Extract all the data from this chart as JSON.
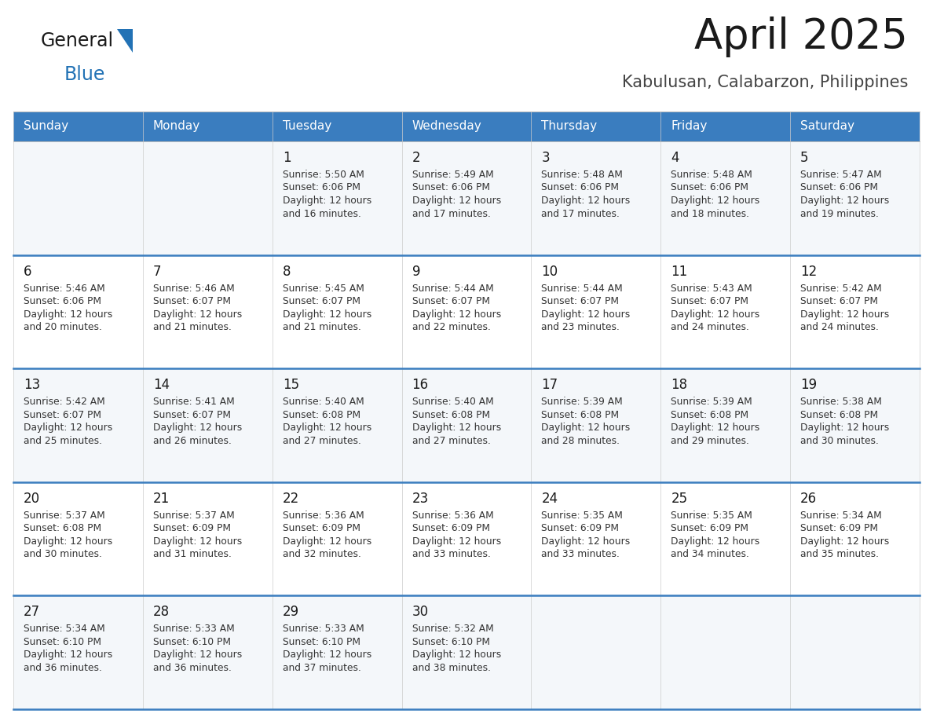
{
  "title": "April 2025",
  "subtitle": "Kabulusan, Calabarzon, Philippines",
  "header_bg_color": "#3a7dbf",
  "header_text_color": "#ffffff",
  "cell_bg_even": "#f4f7fa",
  "cell_bg_odd": "#ffffff",
  "title_color": "#1a1a1a",
  "subtitle_color": "#444444",
  "day_number_color": "#1a1a1a",
  "cell_text_color": "#333333",
  "divider_color": "#3a7dbf",
  "logo_general_color": "#1a1a1a",
  "logo_blue_color": "#2272b5",
  "logo_triangle_color": "#2272b5",
  "days_of_week": [
    "Sunday",
    "Monday",
    "Tuesday",
    "Wednesday",
    "Thursday",
    "Friday",
    "Saturday"
  ],
  "calendar": [
    [
      {
        "day": null,
        "sunrise": null,
        "sunset": null,
        "daylight": null
      },
      {
        "day": null,
        "sunrise": null,
        "sunset": null,
        "daylight": null
      },
      {
        "day": 1,
        "sunrise": "5:50 AM",
        "sunset": "6:06 PM",
        "daylight": "12 hours and 16 minutes."
      },
      {
        "day": 2,
        "sunrise": "5:49 AM",
        "sunset": "6:06 PM",
        "daylight": "12 hours and 17 minutes."
      },
      {
        "day": 3,
        "sunrise": "5:48 AM",
        "sunset": "6:06 PM",
        "daylight": "12 hours and 17 minutes."
      },
      {
        "day": 4,
        "sunrise": "5:48 AM",
        "sunset": "6:06 PM",
        "daylight": "12 hours and 18 minutes."
      },
      {
        "day": 5,
        "sunrise": "5:47 AM",
        "sunset": "6:06 PM",
        "daylight": "12 hours and 19 minutes."
      }
    ],
    [
      {
        "day": 6,
        "sunrise": "5:46 AM",
        "sunset": "6:06 PM",
        "daylight": "12 hours and 20 minutes."
      },
      {
        "day": 7,
        "sunrise": "5:46 AM",
        "sunset": "6:07 PM",
        "daylight": "12 hours and 21 minutes."
      },
      {
        "day": 8,
        "sunrise": "5:45 AM",
        "sunset": "6:07 PM",
        "daylight": "12 hours and 21 minutes."
      },
      {
        "day": 9,
        "sunrise": "5:44 AM",
        "sunset": "6:07 PM",
        "daylight": "12 hours and 22 minutes."
      },
      {
        "day": 10,
        "sunrise": "5:44 AM",
        "sunset": "6:07 PM",
        "daylight": "12 hours and 23 minutes."
      },
      {
        "day": 11,
        "sunrise": "5:43 AM",
        "sunset": "6:07 PM",
        "daylight": "12 hours and 24 minutes."
      },
      {
        "day": 12,
        "sunrise": "5:42 AM",
        "sunset": "6:07 PM",
        "daylight": "12 hours and 24 minutes."
      }
    ],
    [
      {
        "day": 13,
        "sunrise": "5:42 AM",
        "sunset": "6:07 PM",
        "daylight": "12 hours and 25 minutes."
      },
      {
        "day": 14,
        "sunrise": "5:41 AM",
        "sunset": "6:07 PM",
        "daylight": "12 hours and 26 minutes."
      },
      {
        "day": 15,
        "sunrise": "5:40 AM",
        "sunset": "6:08 PM",
        "daylight": "12 hours and 27 minutes."
      },
      {
        "day": 16,
        "sunrise": "5:40 AM",
        "sunset": "6:08 PM",
        "daylight": "12 hours and 27 minutes."
      },
      {
        "day": 17,
        "sunrise": "5:39 AM",
        "sunset": "6:08 PM",
        "daylight": "12 hours and 28 minutes."
      },
      {
        "day": 18,
        "sunrise": "5:39 AM",
        "sunset": "6:08 PM",
        "daylight": "12 hours and 29 minutes."
      },
      {
        "day": 19,
        "sunrise": "5:38 AM",
        "sunset": "6:08 PM",
        "daylight": "12 hours and 30 minutes."
      }
    ],
    [
      {
        "day": 20,
        "sunrise": "5:37 AM",
        "sunset": "6:08 PM",
        "daylight": "12 hours and 30 minutes."
      },
      {
        "day": 21,
        "sunrise": "5:37 AM",
        "sunset": "6:09 PM",
        "daylight": "12 hours and 31 minutes."
      },
      {
        "day": 22,
        "sunrise": "5:36 AM",
        "sunset": "6:09 PM",
        "daylight": "12 hours and 32 minutes."
      },
      {
        "day": 23,
        "sunrise": "5:36 AM",
        "sunset": "6:09 PM",
        "daylight": "12 hours and 33 minutes."
      },
      {
        "day": 24,
        "sunrise": "5:35 AM",
        "sunset": "6:09 PM",
        "daylight": "12 hours and 33 minutes."
      },
      {
        "day": 25,
        "sunrise": "5:35 AM",
        "sunset": "6:09 PM",
        "daylight": "12 hours and 34 minutes."
      },
      {
        "day": 26,
        "sunrise": "5:34 AM",
        "sunset": "6:09 PM",
        "daylight": "12 hours and 35 minutes."
      }
    ],
    [
      {
        "day": 27,
        "sunrise": "5:34 AM",
        "sunset": "6:10 PM",
        "daylight": "12 hours and 36 minutes."
      },
      {
        "day": 28,
        "sunrise": "5:33 AM",
        "sunset": "6:10 PM",
        "daylight": "12 hours and 36 minutes."
      },
      {
        "day": 29,
        "sunrise": "5:33 AM",
        "sunset": "6:10 PM",
        "daylight": "12 hours and 37 minutes."
      },
      {
        "day": 30,
        "sunrise": "5:32 AM",
        "sunset": "6:10 PM",
        "daylight": "12 hours and 38 minutes."
      },
      {
        "day": null,
        "sunrise": null,
        "sunset": null,
        "daylight": null
      },
      {
        "day": null,
        "sunrise": null,
        "sunset": null,
        "daylight": null
      },
      {
        "day": null,
        "sunrise": null,
        "sunset": null,
        "daylight": null
      }
    ]
  ]
}
